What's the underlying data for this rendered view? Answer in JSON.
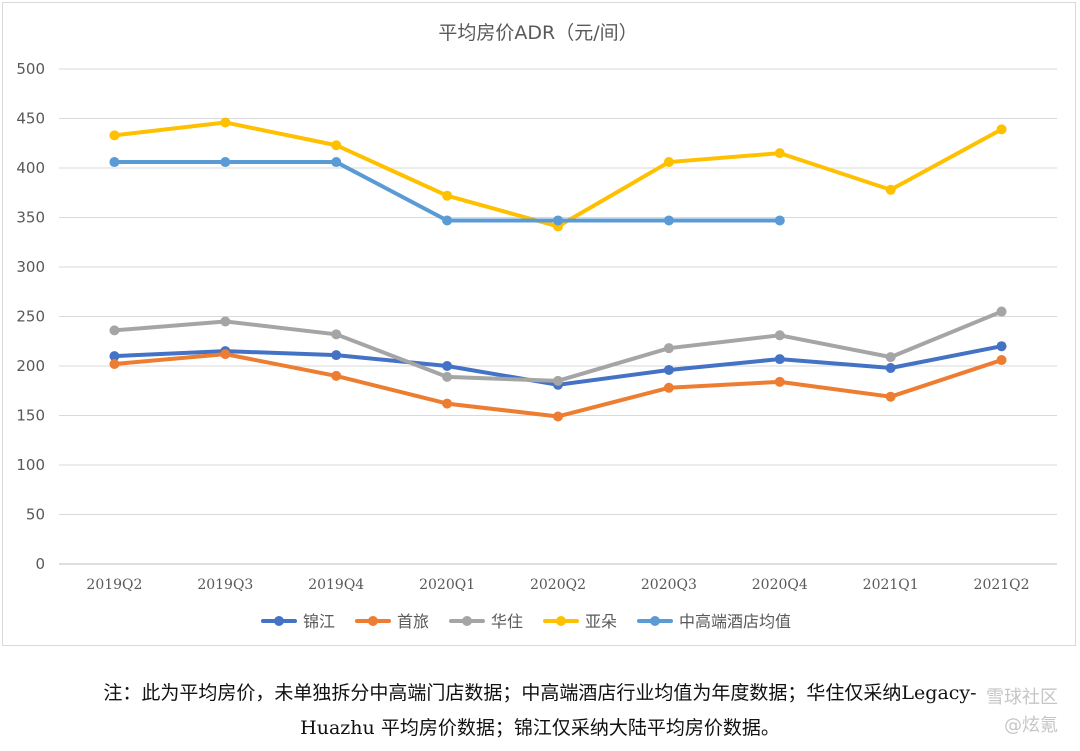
{
  "chart_data": {
    "type": "line",
    "title": "平均房价ADR（元/间）",
    "categories": [
      "2019Q2",
      "2019Q3",
      "2019Q4",
      "2020Q1",
      "2020Q2",
      "2020Q3",
      "2020Q4",
      "2021Q1",
      "2021Q2"
    ],
    "ylim": [
      0,
      500
    ],
    "yticks": [
      0,
      50,
      100,
      150,
      200,
      250,
      300,
      350,
      400,
      450,
      500
    ],
    "grid": true,
    "legend_position": "bottom",
    "series": [
      {
        "name": "锦江",
        "color": "#4472C4",
        "values": [
          210,
          215,
          211,
          200,
          181,
          196,
          207,
          198,
          220
        ]
      },
      {
        "name": "首旅",
        "color": "#ED7D31",
        "values": [
          202,
          212,
          190,
          162,
          149,
          178,
          184,
          169,
          206
        ]
      },
      {
        "name": "华住",
        "color": "#A5A5A5",
        "values": [
          236,
          245,
          232,
          189,
          185,
          218,
          231,
          209,
          255
        ]
      },
      {
        "name": "亚朵",
        "color": "#FFC000",
        "values": [
          433,
          446,
          423,
          372,
          341,
          406,
          415,
          378,
          439
        ]
      },
      {
        "name": "中高端酒店均值",
        "color": "#5B9BD5",
        "values": [
          406,
          406,
          406,
          347,
          347,
          347,
          347,
          null,
          null
        ]
      }
    ]
  },
  "note": {
    "line1": "注：此为平均房价，未单独拆分中高端门店数据；中高端酒店行业均值为年度数据；华住仅采纳Legacy-",
    "line2": "Huazhu 平均房价数据；锦江仅采纳大陆平均房价数据。"
  },
  "watermark": {
    "line1": "雪球社区",
    "line2": "@炫氪"
  }
}
